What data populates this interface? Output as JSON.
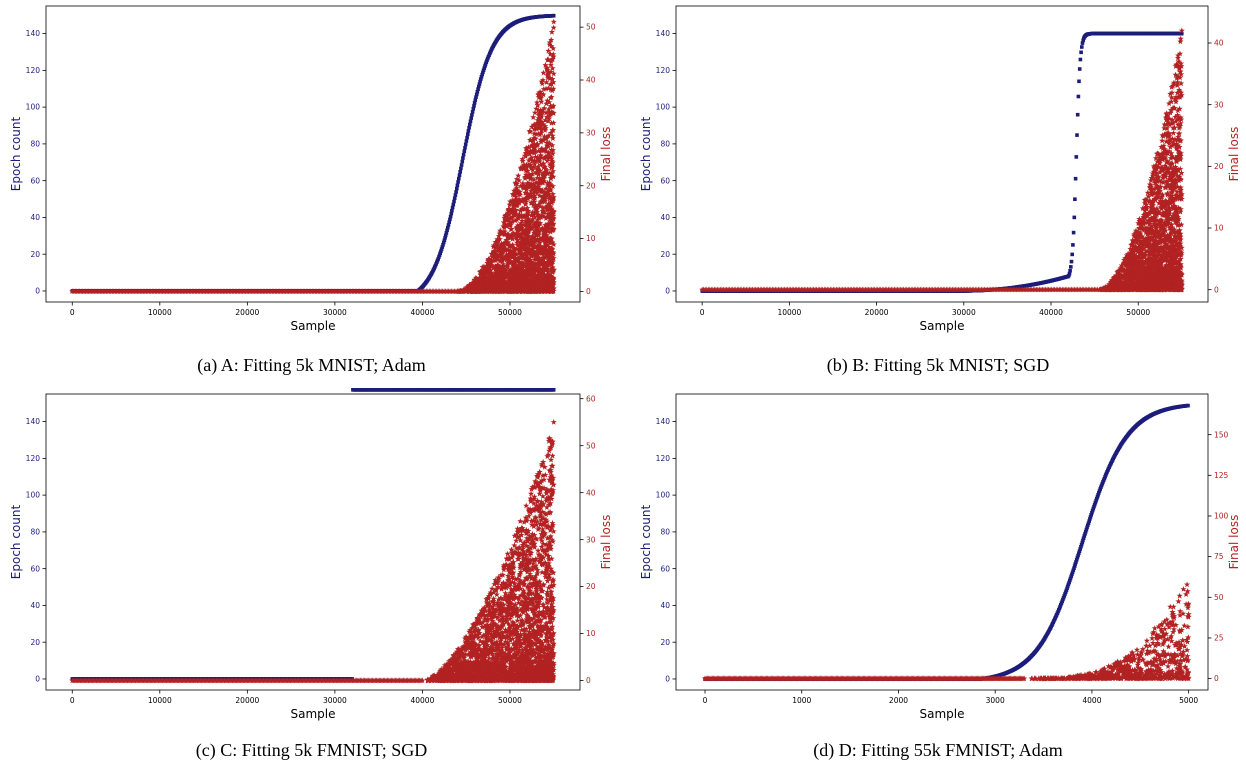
{
  "colors": {
    "epoch": "#1c1c7a",
    "loss": "#b22222",
    "axis": "#000000"
  },
  "chart_data": [
    {
      "type": "scatter",
      "caption": "(a) A: Fitting 5k MNIST; Adam",
      "xlabel": "Sample",
      "ylabel_left": "Epoch count",
      "ylabel_right": "Final loss",
      "xlim": [
        -3000,
        58000
      ],
      "xticks": [
        0,
        10000,
        20000,
        30000,
        40000,
        50000
      ],
      "ylim_left": [
        -6,
        155
      ],
      "yticks_left": [
        0,
        20,
        40,
        60,
        80,
        100,
        120,
        140
      ],
      "ylim_right": [
        -2,
        54
      ],
      "yticks_right": [
        0,
        10,
        20,
        30,
        40,
        50
      ],
      "epoch_curve": {
        "onset": 39500,
        "mid": 44600,
        "scale": 1650,
        "max": 150,
        "creep_start": 39500,
        "creep_amp": 0
      },
      "loss_scatter": {
        "start": 44000,
        "end": 55000,
        "max": 51,
        "exp": 1.8,
        "count": 2600,
        "seed": 11
      },
      "series": [
        {
          "name": "Epoch count",
          "axis": "left",
          "marker": "square"
        },
        {
          "name": "Final loss",
          "axis": "right",
          "marker": "star"
        }
      ]
    },
    {
      "type": "scatter",
      "caption": "(b) B: Fitting 5k MNIST; SGD",
      "xlabel": "Sample",
      "ylabel_left": "Epoch count",
      "ylabel_right": "Final loss",
      "xlim": [
        -3000,
        58000
      ],
      "xticks": [
        0,
        10000,
        20000,
        30000,
        40000,
        50000
      ],
      "ylim_left": [
        -6,
        155
      ],
      "yticks_left": [
        0,
        20,
        40,
        60,
        80,
        100,
        120,
        140
      ],
      "ylim_right": [
        -2,
        46
      ],
      "yticks_right": [
        0,
        10,
        20,
        30,
        40
      ],
      "epoch_curve": {
        "onset": 42000,
        "mid": 42900,
        "scale": 220,
        "max": 140,
        "creep_start": 29000,
        "creep_amp": 8
      },
      "loss_scatter": {
        "start": 45500,
        "end": 55000,
        "max": 42,
        "exp": 1.8,
        "count": 2400,
        "seed": 23
      },
      "series": [
        {
          "name": "Epoch count",
          "axis": "left",
          "marker": "square"
        },
        {
          "name": "Final loss",
          "axis": "right",
          "marker": "star"
        }
      ]
    },
    {
      "type": "scatter",
      "caption": "(c) C: Fitting 5k FMNIST; SGD",
      "xlabel": "Sample",
      "ylabel_left": "Epoch count",
      "ylabel_right": "Final loss",
      "xlim": [
        -3000,
        58000
      ],
      "xticks": [
        0,
        10000,
        20000,
        30000,
        40000,
        50000
      ],
      "ylim_left": [
        -6,
        155
      ],
      "yticks_left": [
        0,
        20,
        40,
        60,
        80,
        100,
        120,
        140
      ],
      "ylim_right": [
        -2,
        61
      ],
      "yticks_right": [
        0,
        10,
        20,
        30,
        40,
        50,
        60
      ],
      "epoch_curve": {
        "onset": 32000,
        "mid": 44000,
        "scale": 2600,
        "max": 152,
        "creep_start": 32000,
        "creep_amp": 2
      },
      "loss_scatter": {
        "start": 40000,
        "end": 55000,
        "max": 55,
        "exp": 1.6,
        "count": 3000,
        "seed": 37
      },
      "series": [
        {
          "name": "Epoch count",
          "axis": "left",
          "marker": "square"
        },
        {
          "name": "Final loss",
          "axis": "right",
          "marker": "star"
        }
      ]
    },
    {
      "type": "scatter",
      "caption": "(d) D: Fitting 55k FMNIST; Adam",
      "xlabel": "Sample",
      "ylabel_left": "Epoch count",
      "ylabel_right": "Final loss",
      "xlim": [
        -300,
        5200
      ],
      "xticks": [
        0,
        1000,
        2000,
        3000,
        4000,
        5000
      ],
      "ylim_left": [
        -6,
        155
      ],
      "yticks_left": [
        0,
        20,
        40,
        60,
        80,
        100,
        120,
        140
      ],
      "ylim_right": [
        -7,
        175
      ],
      "yticks_right": [
        0,
        25,
        50,
        75,
        100,
        125,
        150
      ],
      "epoch_curve": {
        "onset": 2850,
        "mid": 3900,
        "scale": 230,
        "max": 150,
        "creep_start": 2850,
        "creep_amp": 0
      },
      "loss_scatter": {
        "start": 3300,
        "end": 5000,
        "max": 65,
        "exp": 3.2,
        "count": 700,
        "seed": 51
      },
      "series": [
        {
          "name": "Epoch count",
          "axis": "left",
          "marker": "square"
        },
        {
          "name": "Final loss",
          "axis": "right",
          "marker": "star"
        }
      ]
    }
  ]
}
